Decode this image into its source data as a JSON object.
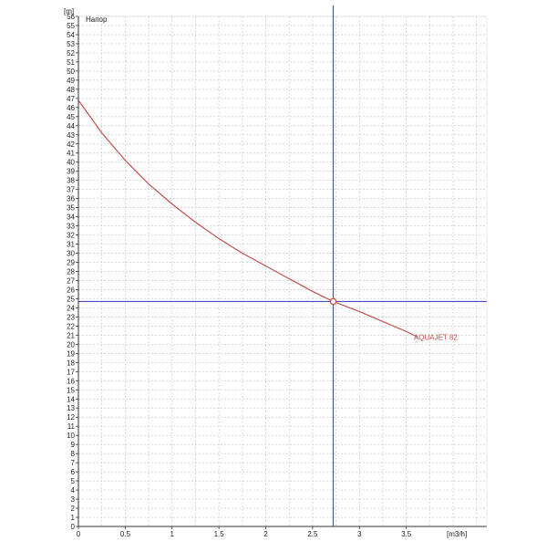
{
  "chart_data": {
    "type": "line",
    "title": "",
    "inner_label": "Напор",
    "y_unit": "[m]",
    "x_unit": "[m3/h]",
    "xlim": [
      0,
      4.36
    ],
    "ylim": [
      0,
      56
    ],
    "x_ticks": [
      {
        "value": 0,
        "label": "0"
      },
      {
        "value": 0.5,
        "label": "0.5"
      },
      {
        "value": 1,
        "label": "1"
      },
      {
        "value": 1.5,
        "label": "1.5"
      },
      {
        "value": 2,
        "label": "2"
      },
      {
        "value": 2.5,
        "label": "2.5"
      },
      {
        "value": 3,
        "label": "3"
      },
      {
        "value": 3.5,
        "label": "3.5"
      }
    ],
    "x_minor_step": 0.25,
    "y_tick_step": 1,
    "grid": true,
    "series": [
      {
        "name": "AQUAJET 82",
        "color": "#c0504d",
        "x": [
          0,
          0.25,
          0.5,
          0.75,
          1,
          1.25,
          1.5,
          1.75,
          2,
          2.25,
          2.5,
          2.72,
          3,
          3.25,
          3.5,
          3.62
        ],
        "y": [
          46.8,
          43.2,
          40.2,
          37.6,
          35.4,
          33.4,
          31.6,
          30.0,
          28.6,
          27.2,
          25.8,
          24.7,
          23.6,
          22.5,
          21.4,
          20.8
        ]
      }
    ],
    "crosshair": {
      "x": 2.72,
      "y": 24.7,
      "line_color": "#4a4ad0",
      "marker_color": "#c0504d"
    },
    "colors": {
      "axis": "#333333",
      "grid": "#c8c8c8"
    }
  }
}
